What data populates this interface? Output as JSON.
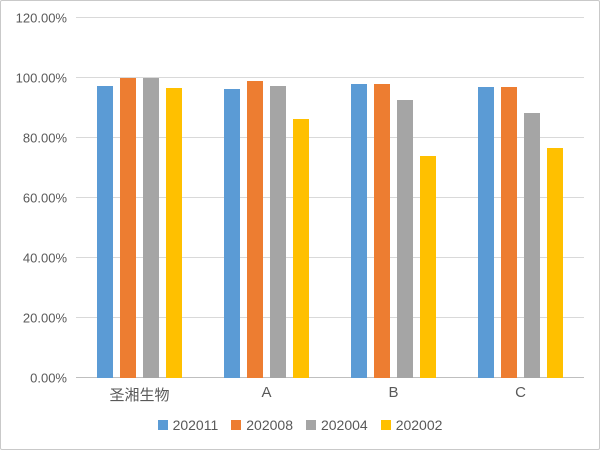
{
  "chart_data": {
    "type": "bar",
    "title": "",
    "xlabel": "",
    "ylabel": "",
    "grid": true,
    "legend_position": "bottom",
    "categories": [
      "圣湘生物",
      "A",
      "B",
      "C"
    ],
    "series": [
      {
        "name": "202011",
        "color": "#5B9BD5",
        "values": [
          97.3,
          96.2,
          98.0,
          97.0
        ]
      },
      {
        "name": "202008",
        "color": "#ED7D31",
        "values": [
          100.0,
          99.0,
          98.0,
          97.0
        ]
      },
      {
        "name": "202004",
        "color": "#A5A5A5",
        "values": [
          100.0,
          97.3,
          92.7,
          88.3
        ]
      },
      {
        "name": "202002",
        "color": "#FFC000",
        "values": [
          96.8,
          86.5,
          74.0,
          76.7
        ]
      }
    ],
    "y_axis": {
      "min": 0,
      "max": 120,
      "step": 20,
      "tick_labels": [
        "0.00%",
        "20.00%",
        "40.00%",
        "60.00%",
        "80.00%",
        "100.00%",
        "120.00%"
      ]
    }
  }
}
